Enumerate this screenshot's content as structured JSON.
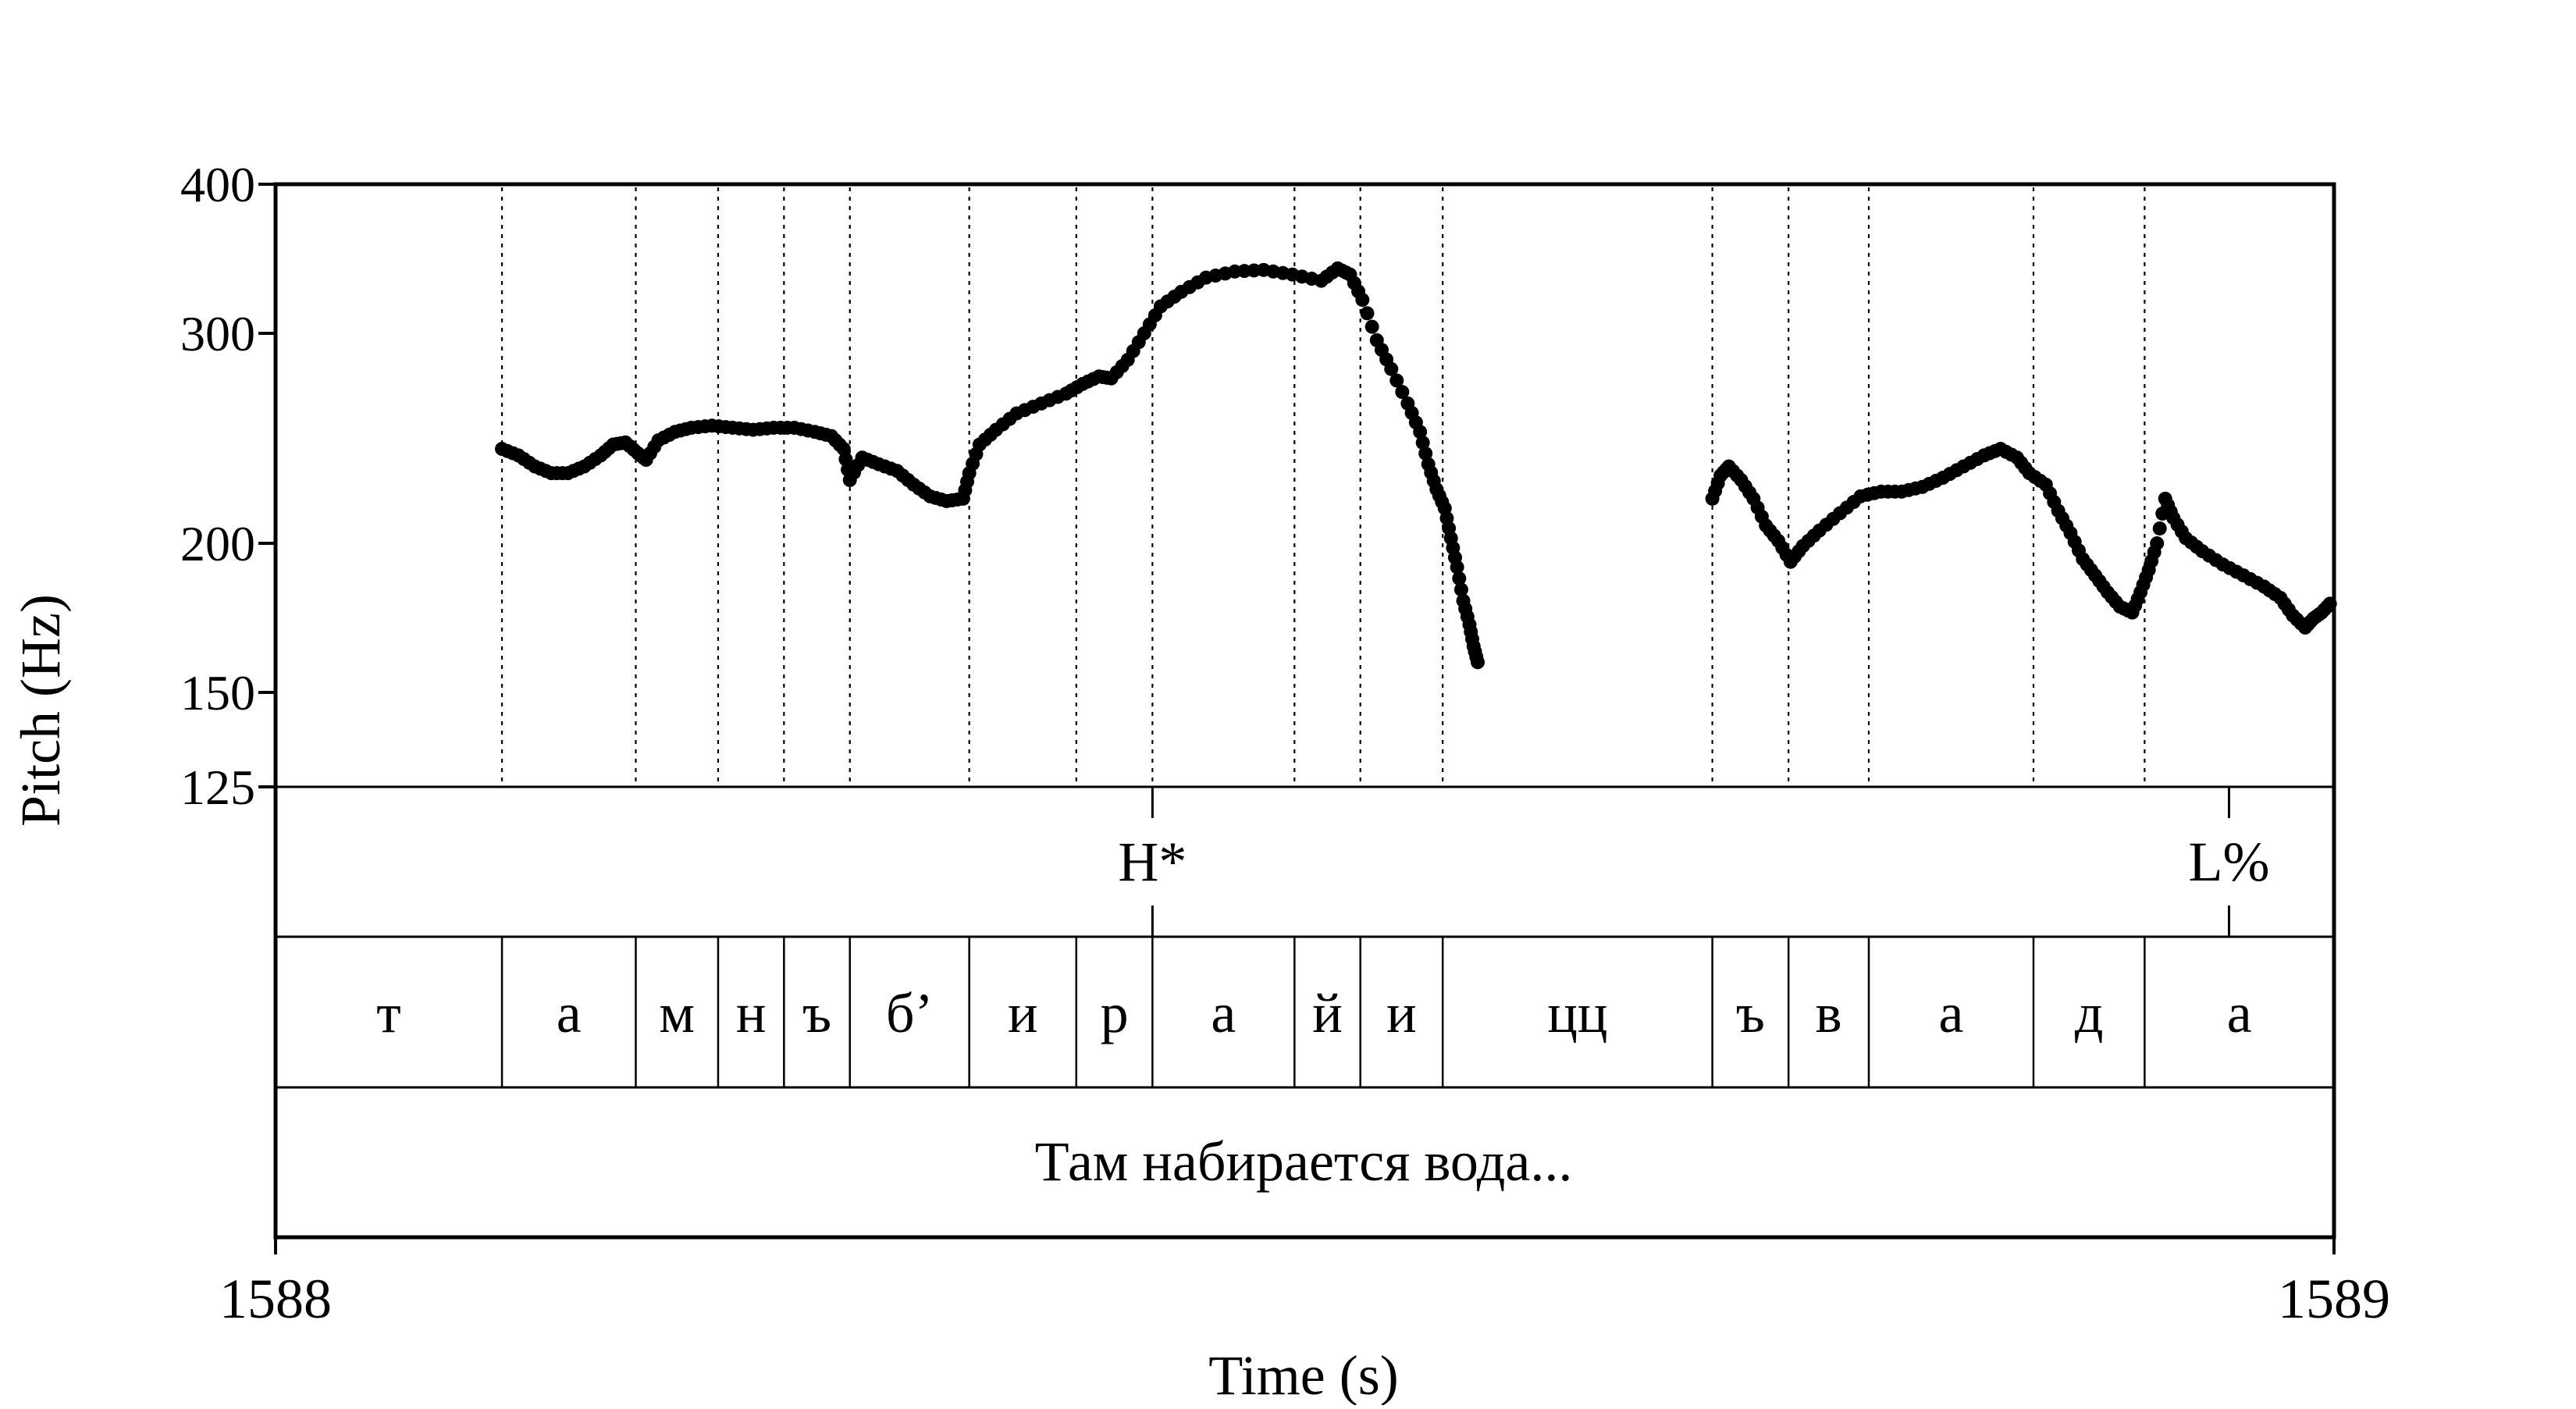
{
  "chart_data": {
    "type": "scatter",
    "title": "",
    "xlabel": "Time (s)",
    "ylabel": "Pitch (Hz)",
    "xlim": [
      1588,
      1589
    ],
    "ylim": [
      125,
      400
    ],
    "yscale": "log",
    "yticks": [
      125,
      150,
      200,
      300,
      400
    ],
    "ytick_labels": [
      "125",
      "150",
      "200",
      "300",
      "400"
    ],
    "xtick_labels": [
      "1588",
      "1589"
    ],
    "grid": false,
    "marker_color": "#000000",
    "segments": [
      {
        "label": "т",
        "start": 1588.0,
        "end": 1588.11
      },
      {
        "label": "а",
        "start": 1588.11,
        "end": 1588.175
      },
      {
        "label": "м",
        "start": 1588.175,
        "end": 1588.215
      },
      {
        "label": "н",
        "start": 1588.215,
        "end": 1588.247
      },
      {
        "label": "ъ",
        "start": 1588.247,
        "end": 1588.279
      },
      {
        "label": "б’",
        "start": 1588.279,
        "end": 1588.337
      },
      {
        "label": "и",
        "start": 1588.337,
        "end": 1588.389
      },
      {
        "label": "р",
        "start": 1588.389,
        "end": 1588.426
      },
      {
        "label": "а",
        "start": 1588.426,
        "end": 1588.495
      },
      {
        "label": "й",
        "start": 1588.495,
        "end": 1588.527
      },
      {
        "label": "и",
        "start": 1588.527,
        "end": 1588.567
      },
      {
        "label": "цц",
        "start": 1588.567,
        "end": 1588.698
      },
      {
        "label": "ъ",
        "start": 1588.698,
        "end": 1588.735
      },
      {
        "label": "в",
        "start": 1588.735,
        "end": 1588.774
      },
      {
        "label": "а",
        "start": 1588.774,
        "end": 1588.854
      },
      {
        "label": "д",
        "start": 1588.854,
        "end": 1588.908
      },
      {
        "label": "а",
        "start": 1588.908,
        "end": 1589.0
      }
    ],
    "tones": [
      {
        "label": "H*",
        "time": 1588.426
      },
      {
        "label": "L%",
        "time": 1588.949
      }
    ],
    "sentence": "Там набирается вода...",
    "series": [
      {
        "points": [
          [
            1588.11,
            240
          ],
          [
            1588.118,
            237
          ],
          [
            1588.126,
            232
          ],
          [
            1588.134,
            229
          ],
          [
            1588.142,
            229
          ],
          [
            1588.15,
            232
          ],
          [
            1588.158,
            237
          ],
          [
            1588.164,
            242
          ],
          [
            1588.17,
            243
          ],
          [
            1588.176,
            238
          ],
          [
            1588.18,
            235
          ],
          [
            1588.186,
            244
          ],
          [
            1588.194,
            248
          ],
          [
            1588.202,
            250
          ],
          [
            1588.212,
            251
          ],
          [
            1588.222,
            250
          ],
          [
            1588.232,
            249
          ],
          [
            1588.242,
            250
          ],
          [
            1588.252,
            250
          ],
          [
            1588.262,
            248
          ],
          [
            1588.27,
            246
          ],
          [
            1588.276,
            240
          ],
          [
            1588.279,
            226
          ],
          [
            1588.285,
            236
          ],
          [
            1588.293,
            233
          ],
          [
            1588.302,
            230
          ],
          [
            1588.31,
            224
          ],
          [
            1588.318,
            219
          ],
          [
            1588.326,
            217
          ],
          [
            1588.334,
            218
          ],
          [
            1588.337,
            229
          ],
          [
            1588.342,
            242
          ],
          [
            1588.35,
            249
          ],
          [
            1588.36,
            257
          ],
          [
            1588.372,
            262
          ],
          [
            1588.384,
            267
          ],
          [
            1588.392,
            272
          ],
          [
            1588.4,
            276
          ],
          [
            1588.406,
            275
          ],
          [
            1588.414,
            285
          ],
          [
            1588.422,
            300
          ],
          [
            1588.43,
            316
          ],
          [
            1588.44,
            325
          ],
          [
            1588.452,
            334
          ],
          [
            1588.466,
            338
          ],
          [
            1588.48,
            339
          ],
          [
            1588.494,
            336
          ],
          [
            1588.508,
            332
          ],
          [
            1588.516,
            340
          ],
          [
            1588.522,
            336
          ],
          [
            1588.528,
            320
          ],
          [
            1588.535,
            296
          ],
          [
            1588.542,
            280
          ],
          [
            1588.55,
            262
          ],
          [
            1588.556,
            248
          ],
          [
            1588.56,
            233
          ],
          [
            1588.564,
            222
          ],
          [
            1588.568,
            214
          ],
          [
            1588.571,
            202
          ],
          [
            1588.574,
            191
          ],
          [
            1588.577,
            179
          ],
          [
            1588.58,
            171
          ],
          [
            1588.582,
            164
          ],
          [
            1588.584,
            159
          ],
          [
            1588.698,
            218
          ],
          [
            1588.702,
            228
          ],
          [
            1588.706,
            232
          ],
          [
            1588.712,
            226
          ],
          [
            1588.718,
            218
          ],
          [
            1588.724,
            207
          ],
          [
            1588.73,
            201
          ],
          [
            1588.736,
            193
          ],
          [
            1588.742,
            199
          ],
          [
            1588.75,
            205
          ],
          [
            1588.76,
            212
          ],
          [
            1588.77,
            219
          ],
          [
            1588.78,
            221
          ],
          [
            1588.79,
            221
          ],
          [
            1588.8,
            223
          ],
          [
            1588.81,
            227
          ],
          [
            1588.82,
            232
          ],
          [
            1588.83,
            237
          ],
          [
            1588.838,
            240
          ],
          [
            1588.846,
            236
          ],
          [
            1588.852,
            229
          ],
          [
            1588.86,
            224
          ],
          [
            1588.866,
            213
          ],
          [
            1588.872,
            204
          ],
          [
            1588.878,
            194
          ],
          [
            1588.884,
            188
          ],
          [
            1588.89,
            182
          ],
          [
            1588.896,
            177
          ],
          [
            1588.902,
            175
          ],
          [
            1588.906,
            182
          ],
          [
            1588.91,
            190
          ],
          [
            1588.914,
            200
          ],
          [
            1588.918,
            218
          ],
          [
            1588.922,
            210
          ],
          [
            1588.928,
            202
          ],
          [
            1588.936,
            197
          ],
          [
            1588.946,
            192
          ],
          [
            1588.956,
            188
          ],
          [
            1588.966,
            184
          ],
          [
            1588.974,
            180
          ],
          [
            1588.98,
            174
          ],
          [
            1588.986,
            170
          ],
          [
            1588.99,
            173
          ],
          [
            1588.994,
            175
          ],
          [
            1588.998,
            178
          ]
        ]
      }
    ]
  }
}
